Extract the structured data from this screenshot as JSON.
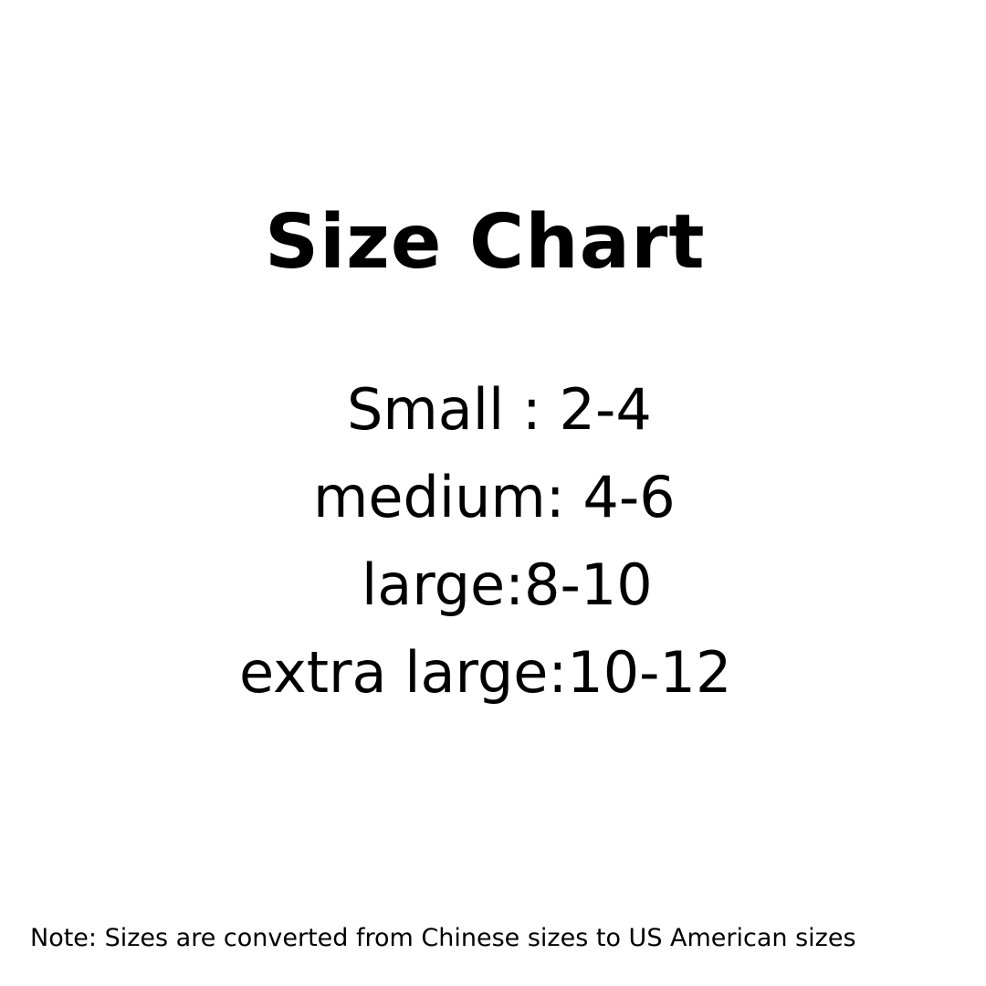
{
  "title": "Size Chart",
  "sizes": [
    "Small : 2-4",
    "medium: 4-6",
    "large:8-10",
    "extra large:10-12"
  ],
  "note": "Note: Sizes are converted from Chinese sizes to US American sizes"
}
